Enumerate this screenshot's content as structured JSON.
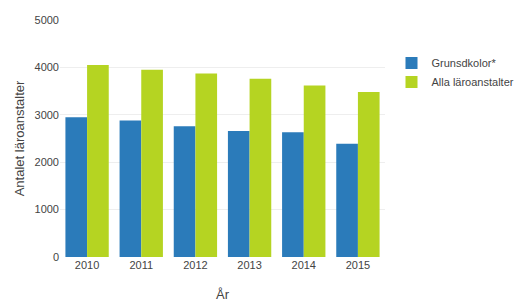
{
  "chart_data": {
    "type": "bar",
    "xlabel": "År",
    "ylabel": "Antalet läroanstalter",
    "categories": [
      "2010",
      "2011",
      "2012",
      "2013",
      "2014",
      "2015"
    ],
    "series": [
      {
        "name": "Grunsdkolor*",
        "color": "#2b7bba",
        "values": [
          2950,
          2880,
          2760,
          2660,
          2630,
          2390
        ]
      },
      {
        "name": "Alla läroanstalter",
        "color": "#b5d422",
        "values": [
          4050,
          3950,
          3870,
          3760,
          3620,
          3480
        ]
      }
    ],
    "ylim": [
      0,
      5000
    ],
    "yticks": [
      0,
      1000,
      2000,
      3000,
      4000,
      5000
    ],
    "grid": true,
    "legend": "right"
  }
}
